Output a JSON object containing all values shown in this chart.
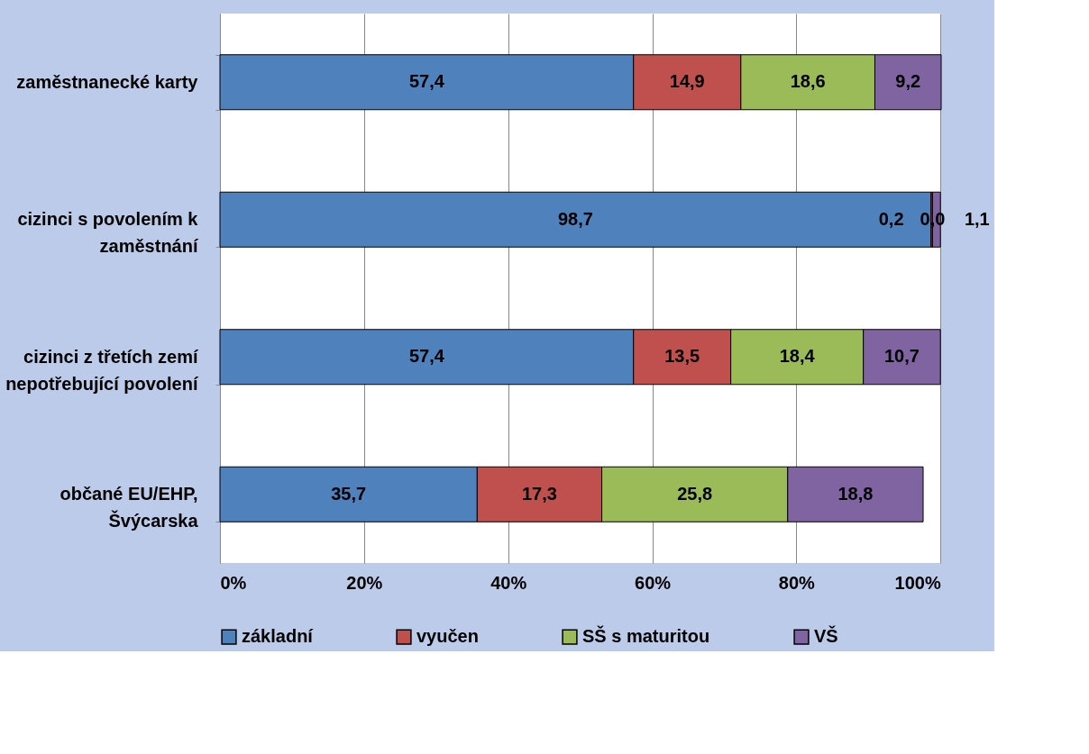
{
  "chart_data": {
    "type": "bar",
    "orientation": "horizontal",
    "stacked": true,
    "categories": [
      "zaměstnanecké karty",
      "cizinci s povolením k zaměstnání",
      "cizinci  z třetích zemí nepotřebující povolení",
      "občané EU/EHP, Švýcarska"
    ],
    "series": [
      {
        "name": "základní",
        "color": "#4f81bd",
        "values": [
          57.4,
          98.7,
          57.4,
          35.7
        ],
        "value_labels": [
          "57,4",
          "98,7",
          "57,4",
          "35,7"
        ]
      },
      {
        "name": "vyučen",
        "color": "#c0504d",
        "values": [
          14.9,
          0.2,
          13.5,
          17.3
        ],
        "value_labels": [
          "14,9",
          "0,2",
          "13,5",
          "17,3"
        ]
      },
      {
        "name": "SŠ s maturitou",
        "color": "#9bbb59",
        "values": [
          18.6,
          0.0,
          18.4,
          25.8
        ],
        "value_labels": [
          "18,6",
          "0,0",
          "18,4",
          "25,8"
        ]
      },
      {
        "name": "VŠ",
        "color": "#8064a2",
        "values": [
          9.2,
          1.1,
          10.7,
          18.8
        ],
        "value_labels": [
          "9,2",
          "1,1",
          "10,7",
          "18,8"
        ]
      }
    ],
    "xlim": [
      0,
      100.1
    ],
    "xticks": [
      {
        "value": 0,
        "label": "0%"
      },
      {
        "value": 20,
        "label": "20%"
      },
      {
        "value": 40,
        "label": "40%"
      },
      {
        "value": 60,
        "label": "60%"
      },
      {
        "value": 80,
        "label": "80%"
      },
      {
        "value": 100,
        "label": "100%"
      }
    ],
    "grid": "x",
    "legend": "bottom"
  }
}
